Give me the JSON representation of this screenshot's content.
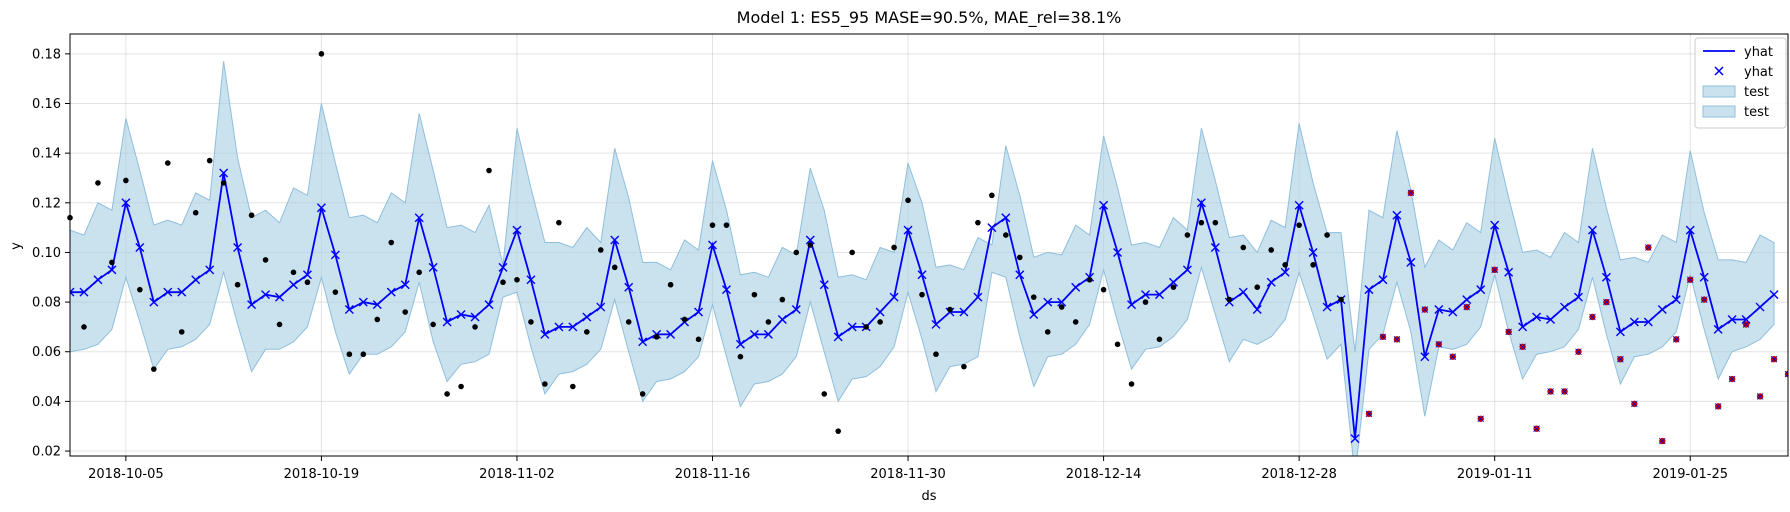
{
  "chart_data": {
    "type": "line",
    "title": "Model 1: ES5_95 MASE=90.5%, MAE_rel=38.1%",
    "xlabel": "ds",
    "ylabel": "y",
    "x_start": "2018-10-01",
    "x_step": "1 day",
    "xlim": [
      "2018-10-01",
      "2019-02-01"
    ],
    "ylim": [
      0.018,
      0.188
    ],
    "x_ticks": [
      "2018-10-05",
      "2018-10-19",
      "2018-11-02",
      "2018-11-16",
      "2018-11-30",
      "2018-12-14",
      "2018-12-28",
      "2019-01-11",
      "2019-01-25"
    ],
    "y_ticks": [
      0.02,
      0.04,
      0.06,
      0.08,
      0.1,
      0.12,
      0.14,
      0.16,
      0.18
    ],
    "y_tick_labels": [
      "0.02",
      "0.04",
      "0.06",
      "0.08",
      "0.10",
      "0.12",
      "0.14",
      "0.16",
      "0.18"
    ],
    "grid": true,
    "legend_position": "top-right",
    "legend": [
      {
        "label": "yhat",
        "kind": "line",
        "color": "#0000ff"
      },
      {
        "label": "yhat",
        "kind": "x-marker",
        "color": "#0000ff"
      },
      {
        "label": "test",
        "kind": "band",
        "color": "#a6cde2"
      },
      {
        "label": "test",
        "kind": "band",
        "color": "#a6cde2"
      }
    ],
    "colors": {
      "forecast": "#0000ff",
      "band_fill": "#a6cde2",
      "band_edge": "#8fbfdc",
      "history_points": "#000000",
      "test_points": "#cc0000",
      "test_marker": "#0000cc"
    },
    "forecast_yhat": [
      0.084,
      0.084,
      0.089,
      0.093,
      0.12,
      0.102,
      0.08,
      0.084,
      0.084,
      0.089,
      0.093,
      0.132,
      0.102,
      0.079,
      0.083,
      0.082,
      0.087,
      0.091,
      0.118,
      0.099,
      0.077,
      0.08,
      0.079,
      0.084,
      0.087,
      0.114,
      0.094,
      0.072,
      0.075,
      0.074,
      0.079,
      0.094,
      0.109,
      0.089,
      0.067,
      0.07,
      0.07,
      0.074,
      0.078,
      0.105,
      0.086,
      0.064,
      0.067,
      0.067,
      0.072,
      0.076,
      0.103,
      0.085,
      0.063,
      0.067,
      0.067,
      0.073,
      0.077,
      0.105,
      0.087,
      0.066,
      0.07,
      0.07,
      0.076,
      0.082,
      0.109,
      0.091,
      0.071,
      0.076,
      0.076,
      0.082,
      0.11,
      0.114,
      0.091,
      0.075,
      0.08,
      0.08,
      0.086,
      0.09,
      0.119,
      0.1,
      0.079,
      0.083,
      0.083,
      0.088,
      0.093,
      0.12,
      0.102,
      0.08,
      0.084,
      0.077,
      0.088,
      0.092,
      0.119,
      0.1,
      0.078,
      0.081,
      0.025,
      0.085,
      0.089,
      0.115,
      0.096,
      0.058,
      0.077,
      0.076,
      0.081,
      0.085,
      0.111,
      0.092,
      0.07,
      0.074,
      0.073,
      0.078,
      0.082,
      0.109,
      0.09,
      0.068,
      0.072,
      0.072,
      0.077,
      0.081,
      0.109,
      0.09,
      0.069,
      0.073,
      0.073,
      0.078,
      0.083
    ],
    "band_upper": [
      0.109,
      0.107,
      0.12,
      0.117,
      0.154,
      0.133,
      0.111,
      0.113,
      0.111,
      0.124,
      0.121,
      0.177,
      0.138,
      0.114,
      0.117,
      0.112,
      0.126,
      0.123,
      0.16,
      0.136,
      0.114,
      0.115,
      0.112,
      0.124,
      0.12,
      0.156,
      0.133,
      0.11,
      0.111,
      0.108,
      0.119,
      0.095,
      0.15,
      0.126,
      0.104,
      0.104,
      0.102,
      0.11,
      0.104,
      0.142,
      0.122,
      0.096,
      0.096,
      0.093,
      0.105,
      0.101,
      0.137,
      0.117,
      0.091,
      0.092,
      0.09,
      0.102,
      0.099,
      0.134,
      0.117,
      0.09,
      0.091,
      0.089,
      0.102,
      0.1,
      0.136,
      0.12,
      0.094,
      0.095,
      0.093,
      0.106,
      0.103,
      0.143,
      0.123,
      0.098,
      0.1,
      0.099,
      0.111,
      0.107,
      0.147,
      0.126,
      0.103,
      0.104,
      0.102,
      0.114,
      0.109,
      0.15,
      0.129,
      0.106,
      0.107,
      0.1,
      0.113,
      0.11,
      0.152,
      0.128,
      0.108,
      0.108,
      0.06,
      0.117,
      0.114,
      0.149,
      0.125,
      0.094,
      0.105,
      0.101,
      0.112,
      0.108,
      0.146,
      0.122,
      0.1,
      0.101,
      0.098,
      0.108,
      0.104,
      0.142,
      0.118,
      0.097,
      0.098,
      0.096,
      0.107,
      0.104,
      0.141,
      0.116,
      0.097,
      0.097,
      0.096,
      0.107,
      0.104
    ],
    "band_lower": [
      0.06,
      0.061,
      0.063,
      0.069,
      0.09,
      0.072,
      0.053,
      0.061,
      0.062,
      0.065,
      0.071,
      0.092,
      0.071,
      0.052,
      0.061,
      0.061,
      0.064,
      0.07,
      0.09,
      0.068,
      0.051,
      0.059,
      0.059,
      0.062,
      0.068,
      0.088,
      0.064,
      0.048,
      0.055,
      0.056,
      0.059,
      0.082,
      0.084,
      0.062,
      0.043,
      0.051,
      0.052,
      0.055,
      0.061,
      0.081,
      0.06,
      0.04,
      0.048,
      0.049,
      0.052,
      0.058,
      0.079,
      0.058,
      0.038,
      0.047,
      0.048,
      0.051,
      0.058,
      0.08,
      0.06,
      0.04,
      0.049,
      0.05,
      0.054,
      0.062,
      0.084,
      0.065,
      0.044,
      0.054,
      0.055,
      0.058,
      0.092,
      0.09,
      0.066,
      0.046,
      0.058,
      0.059,
      0.063,
      0.071,
      0.093,
      0.072,
      0.053,
      0.061,
      0.062,
      0.066,
      0.073,
      0.094,
      0.075,
      0.056,
      0.065,
      0.063,
      0.066,
      0.073,
      0.092,
      0.075,
      0.057,
      0.063,
      0.01,
      0.061,
      0.067,
      0.088,
      0.068,
      0.034,
      0.062,
      0.061,
      0.063,
      0.07,
      0.091,
      0.068,
      0.049,
      0.059,
      0.06,
      0.062,
      0.069,
      0.09,
      0.067,
      0.047,
      0.058,
      0.059,
      0.062,
      0.068,
      0.091,
      0.069,
      0.049,
      0.06,
      0.062,
      0.065,
      0.071
    ],
    "history_points": [
      {
        "x": "2018-10-01",
        "y": 0.114
      },
      {
        "x": "2018-10-02",
        "y": 0.07
      },
      {
        "x": "2018-10-03",
        "y": 0.128
      },
      {
        "x": "2018-10-04",
        "y": 0.096
      },
      {
        "x": "2018-10-05",
        "y": 0.129
      },
      {
        "x": "2018-10-06",
        "y": 0.085
      },
      {
        "x": "2018-10-07",
        "y": 0.053
      },
      {
        "x": "2018-10-08",
        "y": 0.136
      },
      {
        "x": "2018-10-09",
        "y": 0.068
      },
      {
        "x": "2018-10-10",
        "y": 0.116
      },
      {
        "x": "2018-10-11",
        "y": 0.137
      },
      {
        "x": "2018-10-12",
        "y": 0.128
      },
      {
        "x": "2018-10-13",
        "y": 0.087
      },
      {
        "x": "2018-10-14",
        "y": 0.115
      },
      {
        "x": "2018-10-15",
        "y": 0.097
      },
      {
        "x": "2018-10-16",
        "y": 0.071
      },
      {
        "x": "2018-10-17",
        "y": 0.092
      },
      {
        "x": "2018-10-18",
        "y": 0.088
      },
      {
        "x": "2018-10-19",
        "y": 0.18
      },
      {
        "x": "2018-10-20",
        "y": 0.084
      },
      {
        "x": "2018-10-21",
        "y": 0.059
      },
      {
        "x": "2018-10-22",
        "y": 0.059
      },
      {
        "x": "2018-10-23",
        "y": 0.073
      },
      {
        "x": "2018-10-24",
        "y": 0.104
      },
      {
        "x": "2018-10-25",
        "y": 0.076
      },
      {
        "x": "2018-10-26",
        "y": 0.092
      },
      {
        "x": "2018-10-27",
        "y": 0.071
      },
      {
        "x": "2018-10-28",
        "y": 0.043
      },
      {
        "x": "2018-10-29",
        "y": 0.046
      },
      {
        "x": "2018-10-30",
        "y": 0.07
      },
      {
        "x": "2018-10-31",
        "y": 0.133
      },
      {
        "x": "2018-11-01",
        "y": 0.088
      },
      {
        "x": "2018-11-02",
        "y": 0.089
      },
      {
        "x": "2018-11-03",
        "y": 0.072
      },
      {
        "x": "2018-11-04",
        "y": 0.047
      },
      {
        "x": "2018-11-05",
        "y": 0.112
      },
      {
        "x": "2018-11-06",
        "y": 0.046
      },
      {
        "x": "2018-11-07",
        "y": 0.068
      },
      {
        "x": "2018-11-08",
        "y": 0.101
      },
      {
        "x": "2018-11-09",
        "y": 0.094
      },
      {
        "x": "2018-11-10",
        "y": 0.072
      },
      {
        "x": "2018-11-11",
        "y": 0.043
      },
      {
        "x": "2018-11-12",
        "y": 0.066
      },
      {
        "x": "2018-11-13",
        "y": 0.087
      },
      {
        "x": "2018-11-14",
        "y": 0.073
      },
      {
        "x": "2018-11-15",
        "y": 0.065
      },
      {
        "x": "2018-11-16",
        "y": 0.111
      },
      {
        "x": "2018-11-17",
        "y": 0.111
      },
      {
        "x": "2018-11-18",
        "y": 0.058
      },
      {
        "x": "2018-11-19",
        "y": 0.083
      },
      {
        "x": "2018-11-20",
        "y": 0.072
      },
      {
        "x": "2018-11-21",
        "y": 0.081
      },
      {
        "x": "2018-11-22",
        "y": 0.1
      },
      {
        "x": "2018-11-23",
        "y": 0.103
      },
      {
        "x": "2018-11-24",
        "y": 0.043
      },
      {
        "x": "2018-11-25",
        "y": 0.028
      },
      {
        "x": "2018-11-26",
        "y": 0.1
      },
      {
        "x": "2018-11-27",
        "y": 0.07
      },
      {
        "x": "2018-11-28",
        "y": 0.072
      },
      {
        "x": "2018-11-29",
        "y": 0.102
      },
      {
        "x": "2018-11-30",
        "y": 0.121
      },
      {
        "x": "2018-12-01",
        "y": 0.083
      },
      {
        "x": "2018-12-02",
        "y": 0.059
      },
      {
        "x": "2018-12-03",
        "y": 0.077
      },
      {
        "x": "2018-12-04",
        "y": 0.054
      },
      {
        "x": "2018-12-05",
        "y": 0.112
      },
      {
        "x": "2018-12-06",
        "y": 0.123
      },
      {
        "x": "2018-12-07",
        "y": 0.107
      },
      {
        "x": "2018-12-08",
        "y": 0.098
      },
      {
        "x": "2018-12-09",
        "y": 0.082
      },
      {
        "x": "2018-12-10",
        "y": 0.068
      },
      {
        "x": "2018-12-11",
        "y": 0.078
      },
      {
        "x": "2018-12-12",
        "y": 0.072
      },
      {
        "x": "2018-12-13",
        "y": 0.089
      },
      {
        "x": "2018-12-14",
        "y": 0.085
      },
      {
        "x": "2018-12-15",
        "y": 0.063
      },
      {
        "x": "2018-12-16",
        "y": 0.047
      },
      {
        "x": "2018-12-17",
        "y": 0.08
      },
      {
        "x": "2018-12-18",
        "y": 0.065
      },
      {
        "x": "2018-12-19",
        "y": 0.086
      },
      {
        "x": "2018-12-20",
        "y": 0.107
      },
      {
        "x": "2018-12-21",
        "y": 0.112
      },
      {
        "x": "2018-12-22",
        "y": 0.112
      },
      {
        "x": "2018-12-23",
        "y": 0.081
      },
      {
        "x": "2018-12-24",
        "y": 0.102
      },
      {
        "x": "2018-12-25",
        "y": 0.086
      },
      {
        "x": "2018-12-26",
        "y": 0.101
      },
      {
        "x": "2018-12-27",
        "y": 0.095
      },
      {
        "x": "2018-12-28",
        "y": 0.111
      },
      {
        "x": "2018-12-29",
        "y": 0.095
      },
      {
        "x": "2018-12-30",
        "y": 0.107
      },
      {
        "x": "2018-12-31",
        "y": 0.081
      }
    ],
    "test_points": [
      {
        "x": "2019-01-02",
        "y": 0.035
      },
      {
        "x": "2019-01-03",
        "y": 0.066
      },
      {
        "x": "2019-01-04",
        "y": 0.065
      },
      {
        "x": "2019-01-05",
        "y": 0.124
      },
      {
        "x": "2019-01-06",
        "y": 0.077
      },
      {
        "x": "2019-01-07",
        "y": 0.063
      },
      {
        "x": "2019-01-08",
        "y": 0.058
      },
      {
        "x": "2019-01-09",
        "y": 0.078
      },
      {
        "x": "2019-01-10",
        "y": 0.033
      },
      {
        "x": "2019-01-11",
        "y": 0.093
      },
      {
        "x": "2019-01-12",
        "y": 0.068
      },
      {
        "x": "2019-01-13",
        "y": 0.062
      },
      {
        "x": "2019-01-14",
        "y": 0.029
      },
      {
        "x": "2019-01-15",
        "y": 0.044
      },
      {
        "x": "2019-01-16",
        "y": 0.044
      },
      {
        "x": "2019-01-17",
        "y": 0.06
      },
      {
        "x": "2019-01-18",
        "y": 0.074
      },
      {
        "x": "2019-01-19",
        "y": 0.08
      },
      {
        "x": "2019-01-20",
        "y": 0.057
      },
      {
        "x": "2019-01-21",
        "y": 0.039
      },
      {
        "x": "2019-01-22",
        "y": 0.102
      },
      {
        "x": "2019-01-23",
        "y": 0.024
      },
      {
        "x": "2019-01-24",
        "y": 0.065
      },
      {
        "x": "2019-01-25",
        "y": 0.089
      },
      {
        "x": "2019-01-26",
        "y": 0.081
      },
      {
        "x": "2019-01-27",
        "y": 0.038
      },
      {
        "x": "2019-01-28",
        "y": 0.049
      },
      {
        "x": "2019-01-29",
        "y": 0.071
      },
      {
        "x": "2019-01-30",
        "y": 0.042
      },
      {
        "x": "2019-01-31",
        "y": 0.057
      },
      {
        "x": "2019-02-01",
        "y": 0.051
      }
    ]
  }
}
